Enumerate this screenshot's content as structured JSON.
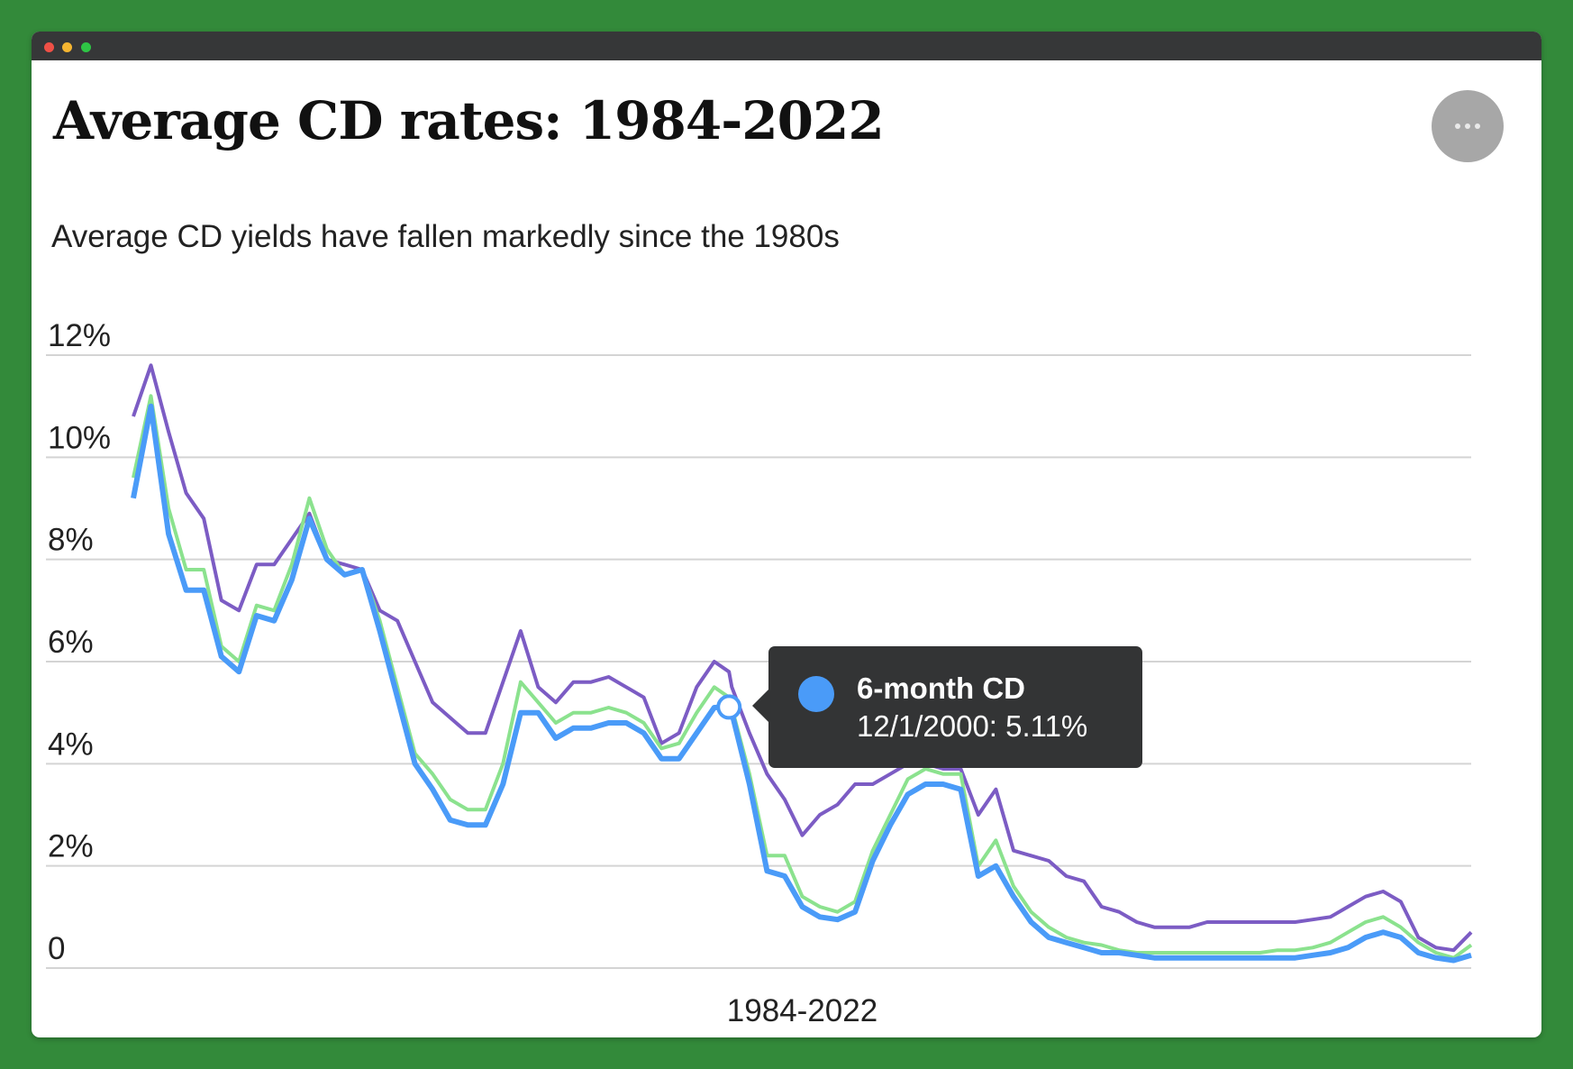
{
  "window": {
    "controls": [
      "close",
      "minimize",
      "maximize"
    ]
  },
  "header": {
    "title": "Average CD rates: 1984-2022",
    "subtitle": "Average CD yields have fallen markedly since the 1980s",
    "more_icon": "ellipsis-icon"
  },
  "tooltip": {
    "series": "6-month CD",
    "value_text": "12/1/2000: 5.11%",
    "color": "#4a9bf8"
  },
  "chart_data": {
    "type": "line",
    "title": "Average CD rates: 1984-2022",
    "subtitle": "Average CD yields have fallen markedly since the 1980s",
    "xlabel": "1984-2022",
    "ylabel": "",
    "x": [
      1984.0,
      1984.5,
      1985.0,
      1985.5,
      1986.0,
      1986.5,
      1987.0,
      1987.5,
      1988.0,
      1988.5,
      1989.0,
      1989.5,
      1990.0,
      1990.5,
      1991.0,
      1991.5,
      1992.0,
      1992.5,
      1993.0,
      1993.5,
      1994.0,
      1994.5,
      1995.0,
      1995.5,
      1996.0,
      1996.5,
      1997.0,
      1997.5,
      1998.0,
      1998.5,
      1999.0,
      1999.5,
      2000.0,
      2000.5,
      2000.92,
      2001.0,
      2001.5,
      2002.0,
      2002.5,
      2003.0,
      2003.5,
      2004.0,
      2004.5,
      2005.0,
      2005.5,
      2006.0,
      2006.5,
      2007.0,
      2007.5,
      2008.0,
      2008.5,
      2009.0,
      2009.5,
      2010.0,
      2010.5,
      2011.0,
      2011.5,
      2012.0,
      2012.5,
      2013.0,
      2013.5,
      2014.0,
      2014.5,
      2015.0,
      2015.5,
      2016.0,
      2016.5,
      2017.0,
      2017.5,
      2018.0,
      2018.5,
      2019.0,
      2019.5,
      2020.0,
      2020.5,
      2021.0,
      2021.5,
      2022.0
    ],
    "series": [
      {
        "name": "6-month CD",
        "color": "#4a9bf8",
        "values": [
          9.2,
          11.0,
          8.5,
          7.4,
          7.4,
          6.1,
          5.8,
          6.9,
          6.8,
          7.6,
          8.8,
          8.0,
          7.7,
          7.8,
          6.6,
          5.3,
          4.0,
          3.5,
          2.9,
          2.8,
          2.8,
          3.6,
          5.0,
          5.0,
          4.5,
          4.7,
          4.7,
          4.8,
          4.8,
          4.6,
          4.1,
          4.1,
          4.6,
          5.1,
          5.11,
          5.0,
          3.6,
          1.9,
          1.8,
          1.2,
          1.0,
          0.95,
          1.1,
          2.1,
          2.8,
          3.4,
          3.6,
          3.6,
          3.5,
          1.8,
          2.0,
          1.4,
          0.9,
          0.6,
          0.5,
          0.4,
          0.3,
          0.3,
          0.25,
          0.2,
          0.2,
          0.2,
          0.2,
          0.2,
          0.2,
          0.2,
          0.2,
          0.2,
          0.25,
          0.3,
          0.4,
          0.6,
          0.7,
          0.6,
          0.3,
          0.2,
          0.15,
          0.25
        ]
      },
      {
        "name": "",
        "color": "#8be28e",
        "values": [
          9.6,
          11.2,
          9.0,
          7.8,
          7.8,
          6.3,
          6.0,
          7.1,
          7.0,
          7.9,
          9.2,
          8.2,
          7.7,
          7.8,
          6.8,
          5.5,
          4.2,
          3.8,
          3.3,
          3.1,
          3.1,
          4.0,
          5.6,
          5.2,
          4.8,
          5.0,
          5.0,
          5.1,
          5.0,
          4.8,
          4.3,
          4.4,
          5.0,
          5.5,
          5.3,
          5.1,
          3.8,
          2.2,
          2.2,
          1.4,
          1.2,
          1.1,
          1.3,
          2.3,
          3.0,
          3.7,
          3.9,
          3.8,
          3.8,
          2.0,
          2.5,
          1.6,
          1.1,
          0.8,
          0.6,
          0.5,
          0.45,
          0.35,
          0.3,
          0.3,
          0.3,
          0.3,
          0.3,
          0.3,
          0.3,
          0.3,
          0.35,
          0.35,
          0.4,
          0.5,
          0.7,
          0.9,
          1.0,
          0.8,
          0.5,
          0.3,
          0.2,
          0.45
        ]
      },
      {
        "name": "",
        "color": "#7c5cc4",
        "values": [
          10.8,
          11.8,
          10.5,
          9.3,
          8.8,
          7.2,
          7.0,
          7.9,
          7.9,
          8.4,
          8.9,
          8.0,
          7.9,
          7.8,
          7.0,
          6.8,
          6.0,
          5.2,
          4.9,
          4.6,
          4.6,
          5.6,
          6.6,
          5.5,
          5.2,
          5.6,
          5.6,
          5.7,
          5.5,
          5.3,
          4.4,
          4.6,
          5.5,
          6.0,
          5.8,
          5.5,
          4.6,
          3.8,
          3.3,
          2.6,
          3.0,
          3.2,
          3.6,
          3.6,
          3.8,
          4.0,
          4.0,
          3.9,
          3.9,
          3.0,
          3.5,
          2.3,
          2.2,
          2.1,
          1.8,
          1.7,
          1.2,
          1.1,
          0.9,
          0.8,
          0.8,
          0.8,
          0.9,
          0.9,
          0.9,
          0.9,
          0.9,
          0.9,
          0.95,
          1.0,
          1.2,
          1.4,
          1.5,
          1.3,
          0.6,
          0.4,
          0.35,
          0.7
        ]
      }
    ],
    "highlight": {
      "series": "6-month CD",
      "x": 2000.92,
      "y": 5.11
    },
    "ylim": [
      0,
      12
    ],
    "yticks": [
      0,
      2,
      4,
      6,
      8,
      10,
      12
    ],
    "ytick_labels": [
      "0",
      "2%",
      "4%",
      "6%",
      "8%",
      "10%",
      "12%"
    ],
    "xlim": [
      1984.0,
      2022.0
    ],
    "grid": true,
    "legend": "none"
  }
}
